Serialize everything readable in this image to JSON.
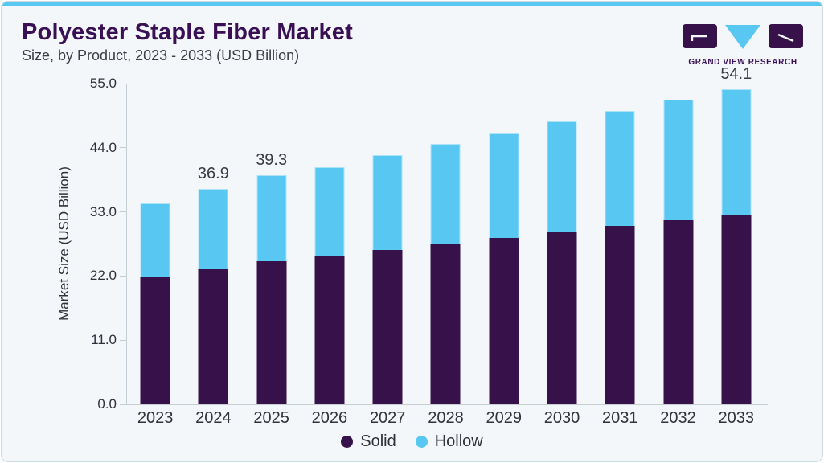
{
  "header": {
    "title": "Polyester Staple Fiber Market",
    "subtitle": "Size, by Product, 2023 - 2033 (USD Billion)",
    "logo_text": "GRAND VIEW RESEARCH"
  },
  "colors": {
    "accent_cyan": "#58c7f2",
    "card_background": "#f3f7fa",
    "title_purple": "#3a1055",
    "solid_purple": "#36114a",
    "hollow_blue": "#58c7f2",
    "axis_line": "#c5cdd4",
    "text_dark": "#30303a"
  },
  "chart_data": {
    "type": "bar",
    "stacked": true,
    "title": "Polyester Staple Fiber Market Size, by Product, 2023 - 2033 (USD Billion)",
    "categories": [
      "2023",
      "2024",
      "2025",
      "2026",
      "2027",
      "2028",
      "2029",
      "2030",
      "2031",
      "2032",
      "2033"
    ],
    "series": [
      {
        "name": "Solid",
        "color": "#36114a",
        "values": [
          21.9,
          23.2,
          24.6,
          25.4,
          26.5,
          27.6,
          28.5,
          29.6,
          30.6,
          31.5,
          32.4
        ]
      },
      {
        "name": "Hollow",
        "color": "#58c7f2",
        "values": [
          12.6,
          13.7,
          14.7,
          15.3,
          16.2,
          17.0,
          18.0,
          18.9,
          19.7,
          20.7,
          21.7
        ]
      }
    ],
    "totals": [
      34.5,
      36.9,
      39.3,
      40.7,
      42.7,
      44.6,
      46.5,
      48.5,
      50.3,
      52.2,
      54.1
    ],
    "data_labels": {
      "2024": "36.9",
      "2025": "39.3",
      "2033": "54.1"
    },
    "xlabel": "",
    "ylabel": "Market Size (USD Billion)",
    "ylim": [
      0,
      55
    ],
    "yticks": [
      "0.0",
      "11.0",
      "22.0",
      "33.0",
      "44.0",
      "55.0"
    ],
    "grid": false,
    "legend_position": "bottom"
  }
}
